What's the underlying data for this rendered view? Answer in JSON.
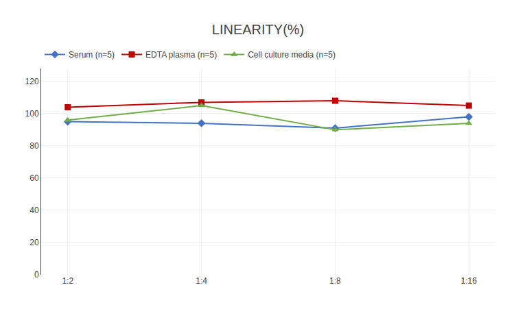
{
  "chart_data": {
    "type": "line",
    "title": "LINEARITY(%)",
    "categories": [
      "1:2",
      "1:4",
      "1:8",
      "1:16"
    ],
    "series": [
      {
        "name": "Serum (n=5)",
        "color": "#4472C4",
        "marker": "diamond",
        "values": [
          95,
          94,
          91,
          98
        ]
      },
      {
        "name": "EDTA plasma (n=5)",
        "color": "#C00000",
        "marker": "square",
        "values": [
          104,
          107,
          108,
          105
        ]
      },
      {
        "name": "Cell culture media (n=5)",
        "color": "#70AD47",
        "marker": "triangle-up",
        "values": [
          96,
          105,
          90,
          94
        ]
      }
    ],
    "ylim": [
      0,
      128
    ],
    "yticks": [
      0,
      20,
      40,
      60,
      80,
      100,
      120
    ],
    "grid": true,
    "legend": "top"
  }
}
